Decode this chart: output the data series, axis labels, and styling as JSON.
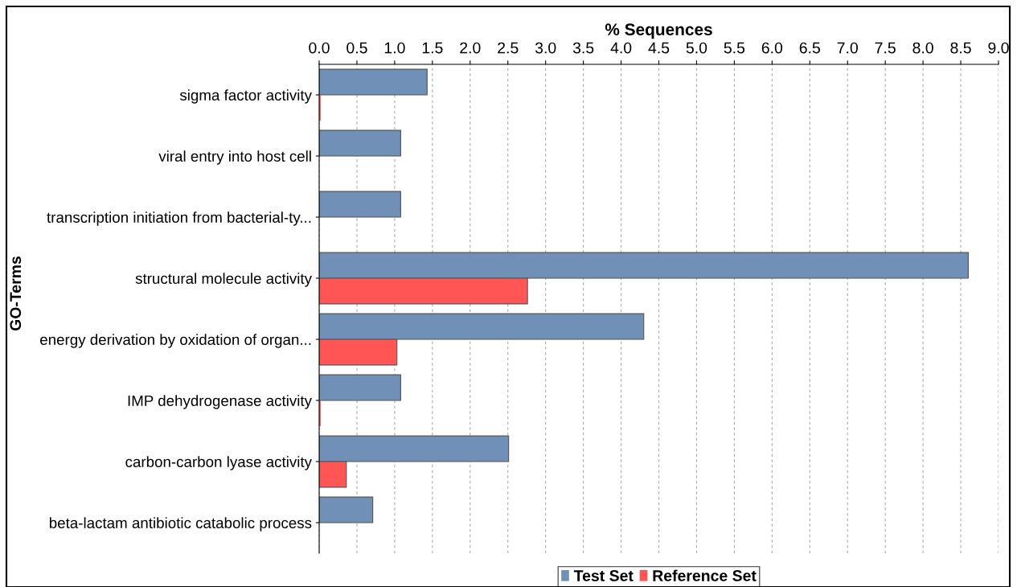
{
  "chart_data": {
    "type": "bar",
    "orientation": "horizontal",
    "xlabel": "% Sequences",
    "ylabel": "GO-Terms",
    "categories": [
      "sigma factor activity",
      "viral entry into host cell",
      "transcription initiation from bacterial-ty...",
      "structural molecule activity",
      "energy derivation by oxidation of organ...",
      "IMP dehydrogenase activity",
      "carbon-carbon lyase activity",
      "beta-lactam antibiotic catabolic process"
    ],
    "series": [
      {
        "name": "Test Set",
        "color": "#7190b8",
        "values": [
          1.43,
          1.08,
          1.08,
          8.6,
          4.3,
          1.08,
          2.51,
          0.71
        ]
      },
      {
        "name": "Reference Set",
        "color": "#ff5555",
        "values": [
          0.02,
          0,
          0,
          2.76,
          1.03,
          0.02,
          0.36,
          0
        ]
      }
    ],
    "xlim": [
      0,
      9.0
    ],
    "xticks": [
      {
        "value": 0,
        "label": "0.0"
      },
      0.5,
      {
        "value": 1,
        "label": "1.0"
      },
      1.5,
      {
        "value": 2,
        "label": "2.0"
      },
      2.5,
      {
        "value": 3,
        "label": "3.0"
      },
      3.5,
      {
        "value": 4,
        "label": "4.0"
      },
      4.5,
      {
        "value": 5,
        "label": "5.0"
      },
      5.5,
      {
        "value": 6,
        "label": "6.0"
      },
      6.5,
      {
        "value": 7,
        "label": "7.0"
      },
      7.5,
      {
        "value": 8,
        "label": "8.0"
      },
      8.5,
      {
        "value": 9,
        "label": "9.0"
      }
    ],
    "grid": "x",
    "legend": "bottom"
  }
}
